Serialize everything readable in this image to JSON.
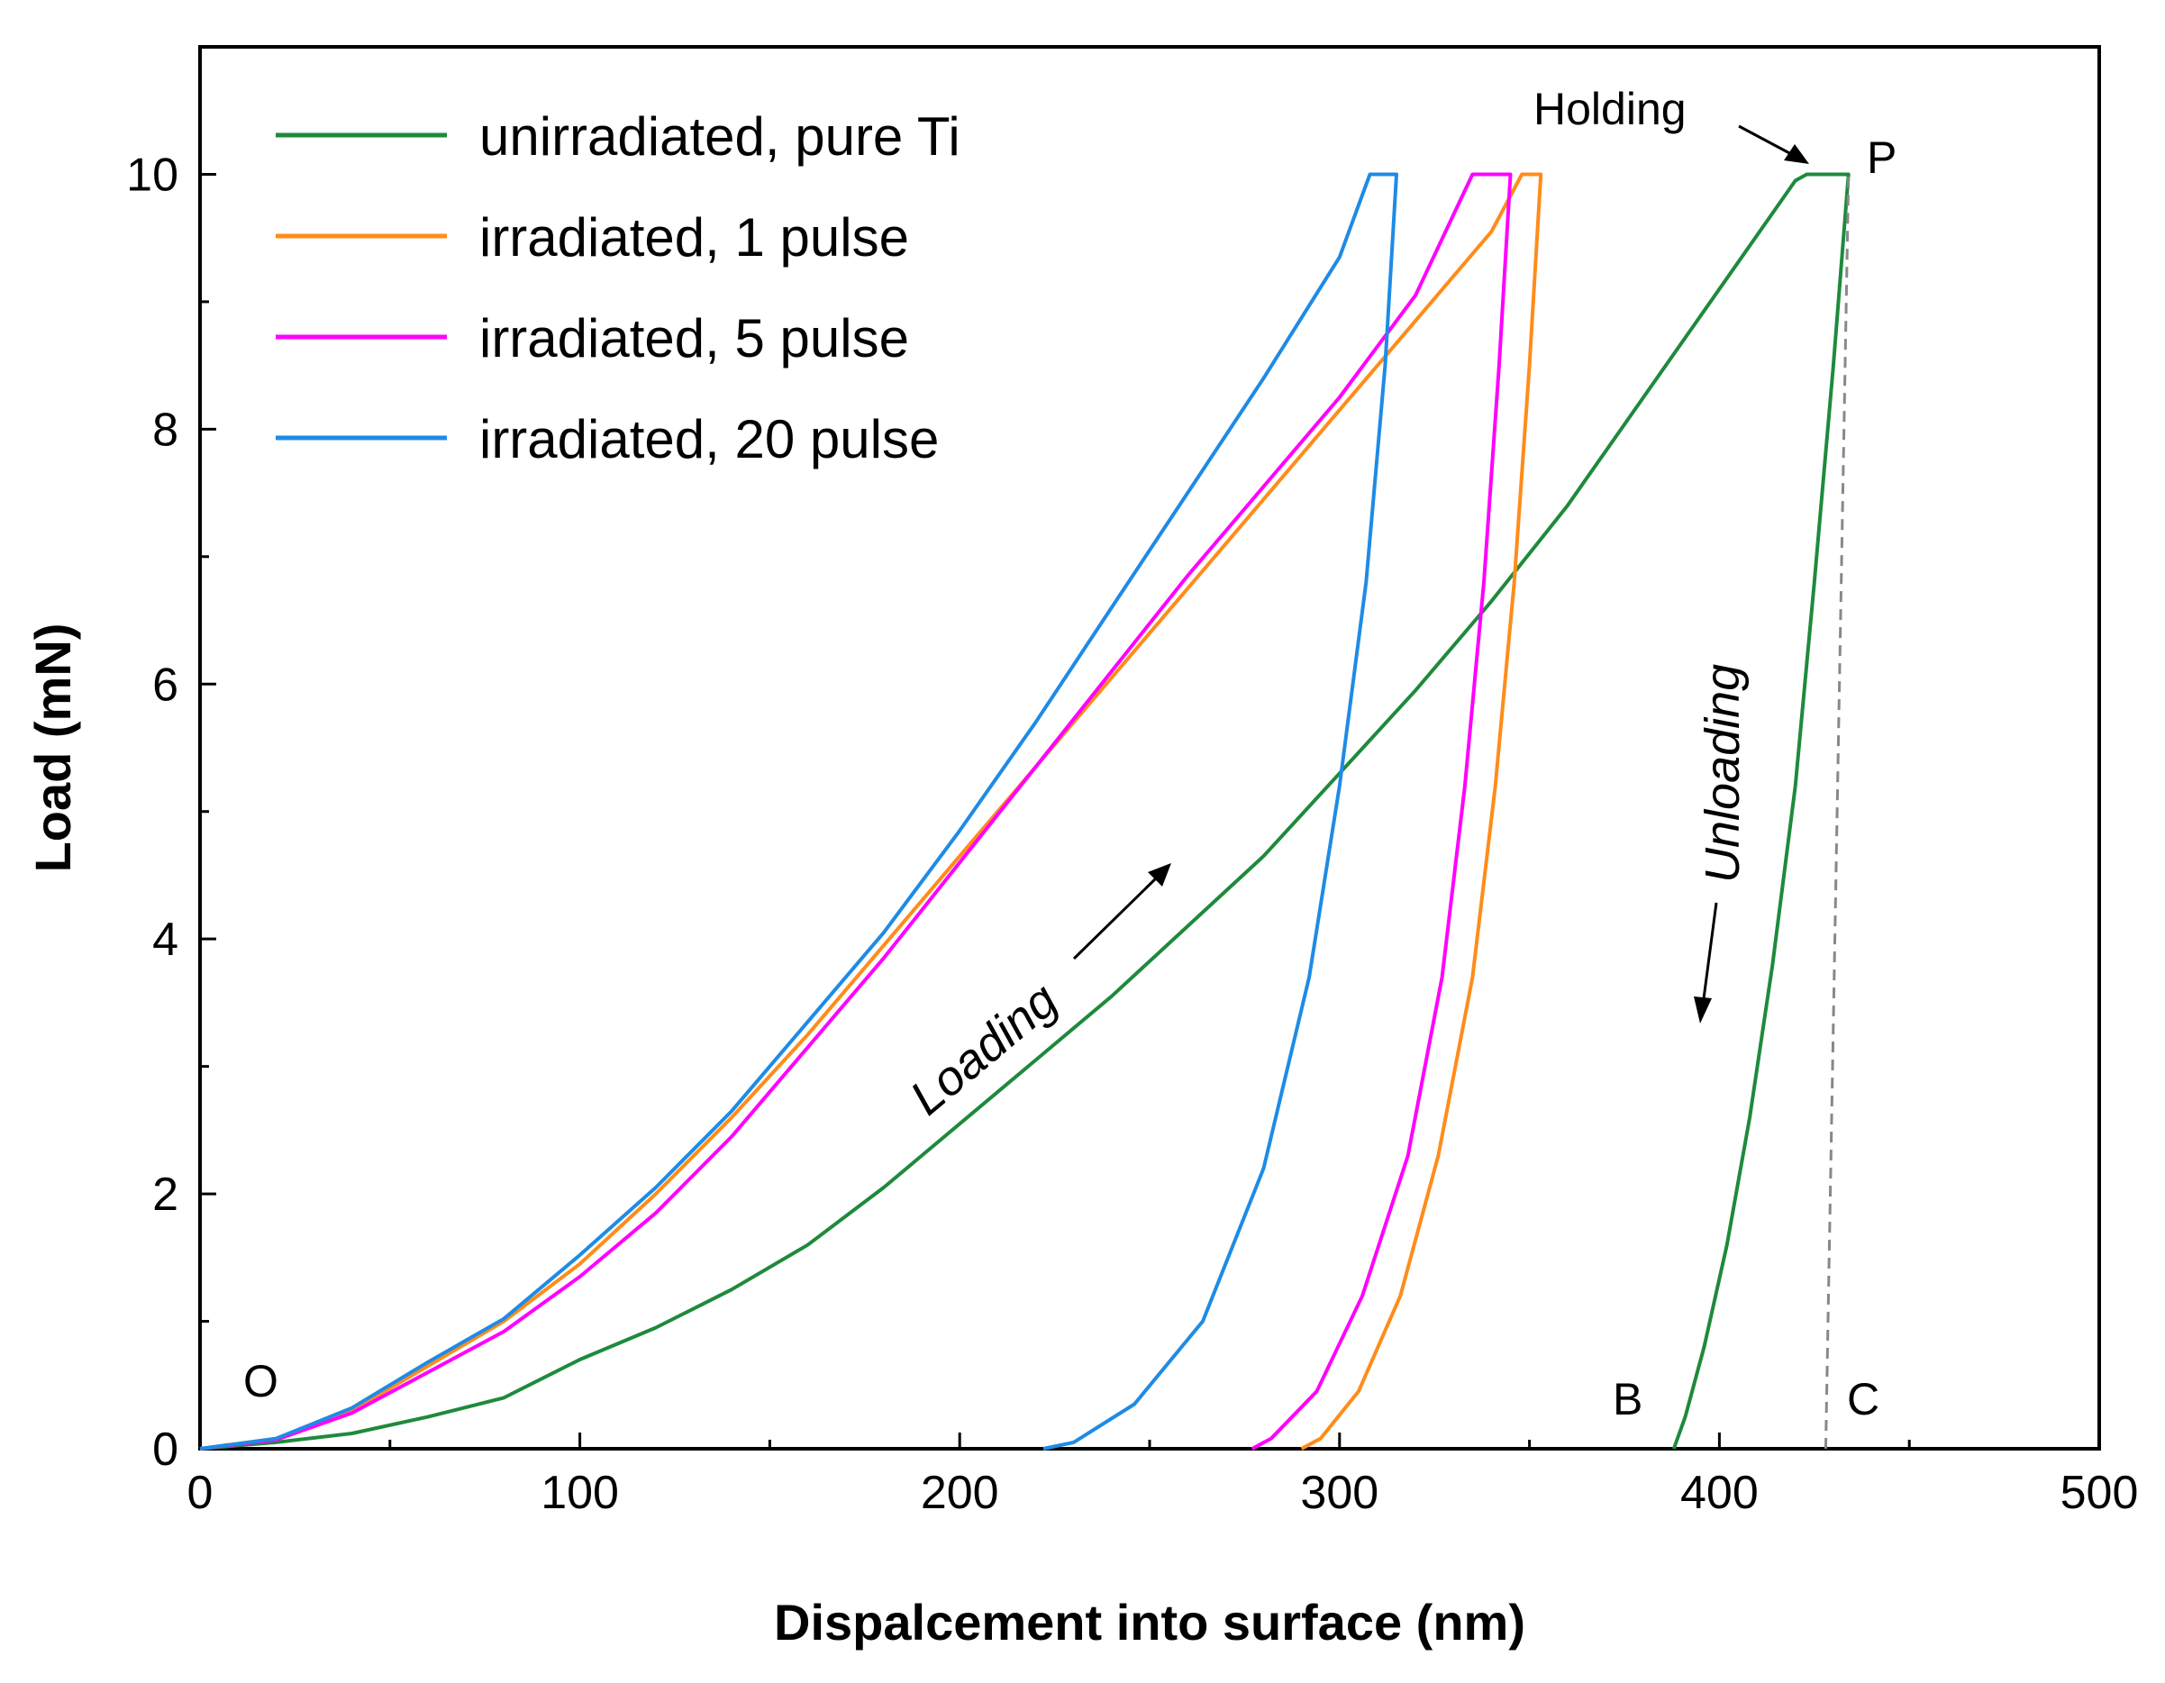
{
  "chart_data": {
    "type": "line",
    "title": "",
    "xlabel": "Dispalcement into surface (nm)",
    "ylabel": "Load (mN)",
    "xlim": [
      0,
      500
    ],
    "ylim": [
      0,
      11
    ],
    "xticks": [
      0,
      100,
      200,
      300,
      400,
      500
    ],
    "yticks": [
      0,
      2,
      4,
      6,
      8,
      10
    ],
    "legend_position": "top-left",
    "series": [
      {
        "name": "unirradiated, pure Ti",
        "color": "#1e8a3c",
        "loading": [
          [
            0,
            0
          ],
          [
            20,
            0.05
          ],
          [
            40,
            0.12
          ],
          [
            60,
            0.25
          ],
          [
            80,
            0.4
          ],
          [
            100,
            0.7
          ],
          [
            120,
            0.95
          ],
          [
            140,
            1.25
          ],
          [
            160,
            1.6
          ],
          [
            180,
            2.05
          ],
          [
            200,
            2.55
          ],
          [
            220,
            3.05
          ],
          [
            240,
            3.55
          ],
          [
            260,
            4.1
          ],
          [
            280,
            4.65
          ],
          [
            300,
            5.3
          ],
          [
            320,
            5.95
          ],
          [
            340,
            6.65
          ],
          [
            360,
            7.4
          ],
          [
            380,
            8.25
          ],
          [
            400,
            9.1
          ],
          [
            420,
            9.95
          ]
        ],
        "holding": [
          [
            420,
            9.95
          ],
          [
            423,
            10.0
          ],
          [
            434,
            10.0
          ]
        ],
        "unloading": [
          [
            434,
            10.0
          ],
          [
            430,
            8.5
          ],
          [
            425,
            6.8
          ],
          [
            420,
            5.2
          ],
          [
            414,
            3.8
          ],
          [
            408,
            2.6
          ],
          [
            402,
            1.6
          ],
          [
            396,
            0.8
          ],
          [
            391,
            0.25
          ],
          [
            388,
            0
          ]
        ]
      },
      {
        "name": "irradiated, 1 pulse",
        "color": "#ff8c1a",
        "loading": [
          [
            0,
            0
          ],
          [
            20,
            0.08
          ],
          [
            40,
            0.3
          ],
          [
            60,
            0.65
          ],
          [
            80,
            1.0
          ],
          [
            100,
            1.45
          ],
          [
            120,
            2.0
          ],
          [
            140,
            2.6
          ],
          [
            160,
            3.25
          ],
          [
            180,
            3.95
          ],
          [
            200,
            4.65
          ],
          [
            220,
            5.35
          ],
          [
            240,
            6.05
          ],
          [
            260,
            6.75
          ],
          [
            280,
            7.45
          ],
          [
            300,
            8.15
          ],
          [
            320,
            8.85
          ],
          [
            340,
            9.55
          ],
          [
            348,
            10.0
          ]
        ],
        "holding": [
          [
            348,
            10.0
          ],
          [
            353,
            10.0
          ]
        ],
        "unloading": [
          [
            353,
            10.0
          ],
          [
            350,
            8.5
          ],
          [
            346,
            6.8
          ],
          [
            341,
            5.2
          ],
          [
            335,
            3.7
          ],
          [
            326,
            2.3
          ],
          [
            316,
            1.2
          ],
          [
            305,
            0.45
          ],
          [
            295,
            0.08
          ],
          [
            290,
            0
          ]
        ]
      },
      {
        "name": "irradiated, 5 pulse",
        "color": "#ff00ff",
        "loading": [
          [
            0,
            0
          ],
          [
            20,
            0.07
          ],
          [
            40,
            0.28
          ],
          [
            60,
            0.6
          ],
          [
            80,
            0.92
          ],
          [
            100,
            1.35
          ],
          [
            120,
            1.85
          ],
          [
            140,
            2.45
          ],
          [
            160,
            3.15
          ],
          [
            180,
            3.85
          ],
          [
            200,
            4.6
          ],
          [
            220,
            5.35
          ],
          [
            240,
            6.1
          ],
          [
            260,
            6.85
          ],
          [
            280,
            7.55
          ],
          [
            300,
            8.25
          ],
          [
            320,
            9.05
          ],
          [
            335,
            10.0
          ]
        ],
        "holding": [
          [
            335,
            10.0
          ],
          [
            345,
            10.0
          ]
        ],
        "unloading": [
          [
            345,
            10.0
          ],
          [
            342,
            8.5
          ],
          [
            338,
            6.8
          ],
          [
            333,
            5.2
          ],
          [
            327,
            3.7
          ],
          [
            318,
            2.3
          ],
          [
            306,
            1.2
          ],
          [
            294,
            0.45
          ],
          [
            282,
            0.08
          ],
          [
            277,
            0
          ]
        ]
      },
      {
        "name": "irradiated, 20 pulse",
        "color": "#1e8be6",
        "loading": [
          [
            0,
            0
          ],
          [
            20,
            0.08
          ],
          [
            40,
            0.32
          ],
          [
            60,
            0.68
          ],
          [
            80,
            1.02
          ],
          [
            100,
            1.52
          ],
          [
            120,
            2.05
          ],
          [
            140,
            2.65
          ],
          [
            160,
            3.35
          ],
          [
            180,
            4.05
          ],
          [
            200,
            4.85
          ],
          [
            220,
            5.7
          ],
          [
            240,
            6.6
          ],
          [
            260,
            7.5
          ],
          [
            280,
            8.4
          ],
          [
            300,
            9.35
          ],
          [
            308,
            10.0
          ]
        ],
        "holding": [
          [
            308,
            10.0
          ],
          [
            315,
            10.0
          ]
        ],
        "unloading": [
          [
            315,
            10.0
          ],
          [
            312,
            8.5
          ],
          [
            307,
            6.8
          ],
          [
            300,
            5.2
          ],
          [
            292,
            3.7
          ],
          [
            280,
            2.2
          ],
          [
            264,
            1.0
          ],
          [
            246,
            0.35
          ],
          [
            230,
            0.05
          ],
          [
            222,
            0
          ]
        ]
      }
    ],
    "reference_line": {
      "x": [
        428,
        434
      ],
      "y": [
        0,
        10
      ],
      "style": "dashed",
      "color": "#888888"
    },
    "annotations": {
      "O": "O",
      "B": "B",
      "C": "C",
      "P": "P",
      "holding": "Holding",
      "loading": "Loading",
      "unloading": "Unloading"
    }
  }
}
